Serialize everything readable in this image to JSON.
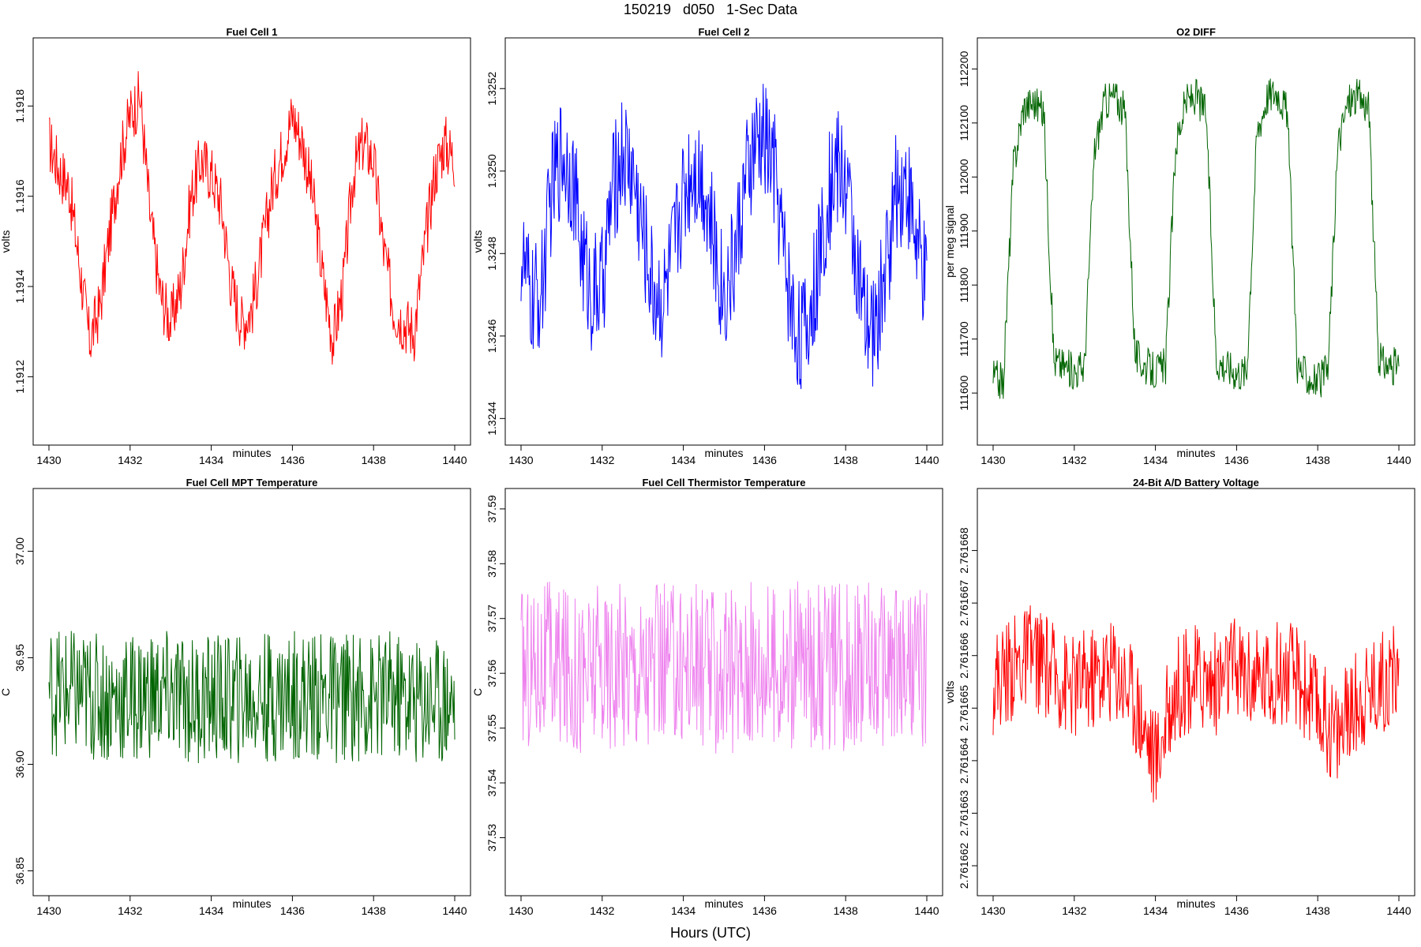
{
  "page": {
    "title": "150219   d050   1-Sec Data",
    "footer": "Hours (UTC)"
  },
  "chart_data": [
    {
      "type": "line",
      "title": "Fuel Cell 1",
      "xlabel": "minutes",
      "ylabel": "volts",
      "color": "#ff0000",
      "xlim": [
        1430,
        1440
      ],
      "ylim": [
        1.19108,
        1.19193
      ],
      "xticks": [
        "1430",
        "1432",
        "1434",
        "1436",
        "1438",
        "1440"
      ],
      "yticks": [
        "1.1912",
        "1.1914",
        "1.1916",
        "1.1918"
      ],
      "series": [
        {
          "x": [
            1430.0,
            1430.25,
            1430.5,
            1430.75,
            1431.0,
            1431.25,
            1431.5,
            1431.75,
            1432.0,
            1432.25,
            1432.5,
            1432.75,
            1433.0,
            1433.25,
            1433.5,
            1433.75,
            1434.0,
            1434.25,
            1434.5,
            1434.75,
            1435.0,
            1435.25,
            1435.5,
            1435.75,
            1436.0,
            1436.25,
            1436.5,
            1436.75,
            1437.0,
            1437.25,
            1437.5,
            1437.75,
            1438.0,
            1438.25,
            1438.5,
            1438.75,
            1439.0,
            1439.25,
            1439.5,
            1439.75,
            1440.0
          ],
          "values": [
            1.19172,
            1.19166,
            1.19162,
            1.19145,
            1.19128,
            1.19135,
            1.19152,
            1.19168,
            1.19178,
            1.19182,
            1.19155,
            1.19138,
            1.19132,
            1.1914,
            1.1916,
            1.19168,
            1.19165,
            1.19158,
            1.1914,
            1.19132,
            1.19135,
            1.19148,
            1.19162,
            1.1917,
            1.19178,
            1.19172,
            1.1916,
            1.19142,
            1.19128,
            1.1914,
            1.19165,
            1.19172,
            1.19168,
            1.19148,
            1.19135,
            1.19132,
            1.1913,
            1.19148,
            1.19165,
            1.19172,
            1.19168
          ]
        }
      ]
    },
    {
      "type": "line",
      "title": "Fuel Cell 2",
      "xlabel": "minutes",
      "ylabel": "volts",
      "color": "#0000ff",
      "xlim": [
        1430,
        1440
      ],
      "ylim": [
        1.32437,
        1.3253
      ],
      "xticks": [
        "1430",
        "1432",
        "1434",
        "1436",
        "1438",
        "1440"
      ],
      "yticks": [
        "1.3244",
        "1.3246",
        "1.3248",
        "1.3250",
        "1.3252"
      ],
      "series": [
        {
          "x": [
            1430.0,
            1430.25,
            1430.5,
            1430.75,
            1431.0,
            1431.25,
            1431.5,
            1431.75,
            1432.0,
            1432.25,
            1432.5,
            1432.75,
            1433.0,
            1433.25,
            1433.5,
            1433.75,
            1434.0,
            1434.25,
            1434.5,
            1434.75,
            1435.0,
            1435.25,
            1435.5,
            1435.75,
            1436.0,
            1436.25,
            1436.5,
            1436.75,
            1437.0,
            1437.25,
            1437.5,
            1437.75,
            1438.0,
            1438.25,
            1438.5,
            1438.75,
            1439.0,
            1439.25,
            1439.5,
            1439.75,
            1440.0
          ],
          "values": [
            1.3248,
            1.32468,
            1.3247,
            1.32495,
            1.32505,
            1.325,
            1.3248,
            1.3247,
            1.32472,
            1.32495,
            1.32505,
            1.325,
            1.32485,
            1.32472,
            1.32468,
            1.3248,
            1.32495,
            1.32502,
            1.32498,
            1.32482,
            1.3247,
            1.32478,
            1.32495,
            1.32505,
            1.32508,
            1.325,
            1.32478,
            1.32462,
            1.3246,
            1.32472,
            1.3249,
            1.32502,
            1.32498,
            1.3248,
            1.3246,
            1.32462,
            1.32478,
            1.32495,
            1.32498,
            1.32482,
            1.3247
          ]
        }
      ]
    },
    {
      "type": "line",
      "title": "O2 DIFF",
      "xlabel": "minutes",
      "ylabel": "per meg signal",
      "color": "#006400",
      "xlim": [
        1430,
        1440
      ],
      "ylim": [
        111530,
        112240
      ],
      "xticks": [
        "1430",
        "1432",
        "1434",
        "1436",
        "1438",
        "1440"
      ],
      "yticks": [
        "111600",
        "111700",
        "111800",
        "111900",
        "112000",
        "112100",
        "112200"
      ],
      "series": [
        {
          "x": [
            1430.0,
            1430.25,
            1430.5,
            1430.75,
            1431.0,
            1431.25,
            1431.5,
            1431.75,
            1432.0,
            1432.25,
            1432.5,
            1432.75,
            1433.0,
            1433.25,
            1433.5,
            1433.75,
            1434.0,
            1434.25,
            1434.5,
            1434.75,
            1435.0,
            1435.25,
            1435.5,
            1435.75,
            1436.0,
            1436.25,
            1436.5,
            1436.75,
            1437.0,
            1437.25,
            1437.5,
            1437.75,
            1438.0,
            1438.25,
            1438.5,
            1438.75,
            1439.0,
            1439.25,
            1439.5,
            1439.75,
            1440.0
          ],
          "values": [
            111630,
            111620,
            112020,
            112130,
            112140,
            112120,
            111660,
            111650,
            111640,
            111650,
            112050,
            112140,
            112150,
            112120,
            111670,
            111650,
            111640,
            111650,
            112060,
            112140,
            112150,
            112120,
            111660,
            111650,
            111640,
            111640,
            112080,
            112150,
            112160,
            112120,
            111650,
            111630,
            111620,
            111640,
            112060,
            112140,
            112150,
            112130,
            111660,
            111650,
            111650
          ]
        }
      ]
    },
    {
      "type": "line",
      "title": "Fuel Cell MPT Temperature",
      "xlabel": "minutes",
      "ylabel": "C",
      "color": "#006400",
      "xlim": [
        1430,
        1440
      ],
      "ylim": [
        36.845,
        37.025
      ],
      "xticks": [
        "1430",
        "1432",
        "1434",
        "1436",
        "1438",
        "1440"
      ],
      "yticks": [
        "36.85",
        "36.90",
        "36.95",
        "37.00"
      ],
      "series": [
        {
          "x": [
            1430.0,
            1430.5,
            1431.0,
            1431.5,
            1432.0,
            1432.5,
            1433.0,
            1433.5,
            1434.0,
            1434.5,
            1435.0,
            1435.5,
            1436.0,
            1436.5,
            1437.0,
            1437.5,
            1438.0,
            1438.5,
            1439.0,
            1439.5,
            1440.0
          ],
          "values": [
            36.935,
            36.933,
            36.932,
            36.93,
            36.931,
            36.933,
            36.932,
            36.93,
            36.931,
            36.93,
            36.932,
            36.931,
            36.933,
            36.932,
            36.931,
            36.932,
            36.931,
            36.932,
            36.93,
            36.931,
            36.93
          ]
        }
      ]
    },
    {
      "type": "line",
      "title": "Fuel Cell Thermistor Temperature",
      "xlabel": "minutes",
      "ylabel": "C",
      "color": "#ee82ee",
      "xlim": [
        1430,
        1440
      ],
      "ylim": [
        37.522,
        37.592
      ],
      "xticks": [
        "1430",
        "1432",
        "1434",
        "1436",
        "1438",
        "1440"
      ],
      "yticks": [
        "37.53",
        "37.54",
        "37.55",
        "37.56",
        "37.57",
        "37.58",
        "37.59"
      ],
      "series": [
        {
          "x": [
            1430.0,
            1430.5,
            1431.0,
            1431.5,
            1432.0,
            1432.5,
            1433.0,
            1433.5,
            1434.0,
            1434.5,
            1435.0,
            1435.5,
            1436.0,
            1436.5,
            1437.0,
            1437.5,
            1438.0,
            1438.5,
            1439.0,
            1439.5,
            1440.0
          ],
          "values": [
            37.561,
            37.562,
            37.561,
            37.56,
            37.561,
            37.562,
            37.561,
            37.561,
            37.562,
            37.561,
            37.56,
            37.561,
            37.562,
            37.561,
            37.562,
            37.561,
            37.561,
            37.562,
            37.561,
            37.561,
            37.562
          ]
        }
      ]
    },
    {
      "type": "line",
      "title": "24-Bit A/D Battery Voltage",
      "xlabel": "minutes",
      "ylabel": "volts",
      "color": "#ff0000",
      "xlim": [
        1430,
        1440
      ],
      "ylim": [
        2.7616617,
        2.761669
      ],
      "xticks": [
        "1430",
        "1432",
        "1434",
        "1436",
        "1438",
        "1440"
      ],
      "yticks": [
        "2.761662",
        "2.761663",
        "2.761664",
        "2.761665",
        "2.761666",
        "2.761667",
        "2.761668"
      ],
      "series": [
        {
          "x": [
            1430.0,
            1430.5,
            1431.0,
            1431.5,
            1432.0,
            1432.5,
            1433.0,
            1433.5,
            1434.0,
            1434.5,
            1435.0,
            1435.5,
            1436.0,
            1436.5,
            1437.0,
            1437.5,
            1438.0,
            1438.5,
            1439.0,
            1439.5,
            1440.0
          ],
          "values": [
            2.7616655,
            2.7616658,
            2.761666,
            2.7616656,
            2.7616654,
            2.7616656,
            2.7616658,
            2.7616652,
            2.761664,
            2.7616654,
            2.7616656,
            2.7616655,
            2.7616658,
            2.7616655,
            2.7616657,
            2.7616656,
            2.761665,
            2.7616645,
            2.7616652,
            2.7616655,
            2.7616657
          ]
        }
      ]
    }
  ]
}
